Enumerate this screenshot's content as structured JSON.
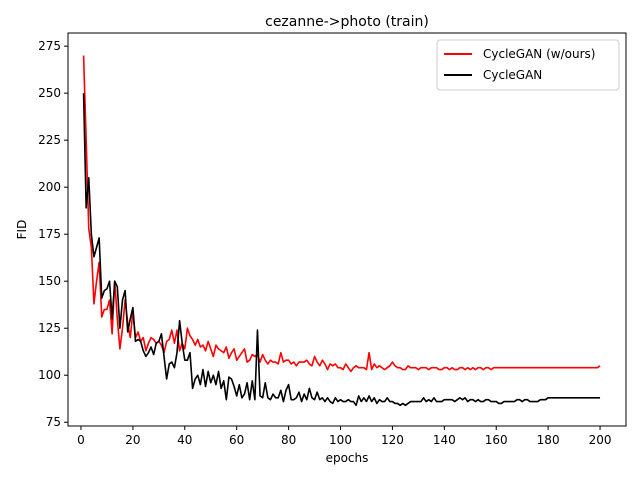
{
  "chart_data": {
    "type": "line",
    "title": "cezanne->photo (train)",
    "xlabel": "epochs",
    "ylabel": "FID",
    "xlim": [
      -5,
      210
    ],
    "ylim": [
      73,
      282
    ],
    "xticks": [
      0,
      20,
      40,
      60,
      80,
      100,
      120,
      140,
      160,
      180,
      200
    ],
    "yticks": [
      75,
      100,
      125,
      150,
      175,
      200,
      225,
      250,
      275
    ],
    "grid": false,
    "legend_position": "upper right",
    "x": [
      1,
      2,
      3,
      4,
      5,
      6,
      7,
      8,
      9,
      10,
      11,
      12,
      13,
      14,
      15,
      16,
      17,
      18,
      19,
      20,
      21,
      22,
      23,
      24,
      25,
      26,
      27,
      28,
      29,
      30,
      31,
      32,
      33,
      34,
      35,
      36,
      37,
      38,
      39,
      40,
      41,
      42,
      43,
      44,
      45,
      46,
      47,
      48,
      49,
      50,
      51,
      52,
      53,
      54,
      55,
      56,
      57,
      58,
      59,
      60,
      61,
      62,
      63,
      64,
      65,
      66,
      67,
      68,
      69,
      70,
      71,
      72,
      73,
      74,
      75,
      76,
      77,
      78,
      79,
      80,
      81,
      82,
      83,
      84,
      85,
      86,
      87,
      88,
      89,
      90,
      91,
      92,
      93,
      94,
      95,
      96,
      97,
      98,
      99,
      100,
      101,
      102,
      103,
      104,
      105,
      106,
      107,
      108,
      109,
      110,
      111,
      112,
      113,
      114,
      115,
      116,
      117,
      118,
      119,
      120,
      121,
      122,
      123,
      124,
      125,
      126,
      127,
      128,
      129,
      130,
      131,
      132,
      133,
      134,
      135,
      136,
      137,
      138,
      139,
      140,
      141,
      142,
      143,
      144,
      145,
      146,
      147,
      148,
      149,
      150,
      151,
      152,
      153,
      154,
      155,
      156,
      157,
      158,
      159,
      160,
      161,
      162,
      163,
      164,
      165,
      166,
      167,
      168,
      169,
      170,
      171,
      172,
      173,
      174,
      175,
      176,
      177,
      178,
      179,
      180,
      181,
      182,
      183,
      184,
      185,
      186,
      187,
      188,
      189,
      190,
      191,
      192,
      193,
      194,
      195,
      196,
      197,
      198,
      199,
      200
    ],
    "series": [
      {
        "name": "CycleGAN (w/ours)",
        "color": "#ff0000",
        "values": [
          270,
          225,
          178,
          168,
          138,
          150,
          160,
          131,
          135,
          135,
          140,
          122,
          150,
          130,
          114,
          125,
          140,
          128,
          120,
          134,
          120,
          123,
          118,
          120,
          113,
          117,
          120,
          119,
          117,
          118,
          116,
          112,
          118,
          119,
          124,
          117,
          124,
          113,
          117,
          114,
          125,
          121,
          119,
          116,
          119,
          115,
          116,
          113,
          118,
          114,
          110,
          116,
          114,
          113,
          112,
          115,
          109,
          112,
          114,
          108,
          110,
          112,
          114,
          107,
          108,
          111,
          110,
          111,
          107,
          111,
          108,
          106,
          108,
          107,
          107,
          106,
          112,
          107,
          108,
          108,
          106,
          107,
          105,
          107,
          107,
          107,
          108,
          106,
          105,
          110,
          107,
          105,
          108,
          106,
          103,
          106,
          105,
          106,
          104,
          104,
          103,
          106,
          104,
          102,
          104,
          105,
          104,
          104,
          104,
          103,
          112,
          103,
          106,
          104,
          105,
          104,
          103,
          104,
          105,
          107,
          105,
          104,
          104,
          103,
          103,
          105,
          104,
          104,
          104,
          103,
          104,
          104,
          104,
          103,
          104,
          104,
          104,
          103,
          103,
          104,
          104,
          103,
          104,
          103,
          103,
          104,
          104,
          103,
          104,
          103,
          104,
          103,
          104,
          104,
          103,
          104,
          104,
          103,
          104,
          104,
          104,
          104,
          104,
          104,
          104,
          104,
          104,
          104,
          104,
          104,
          104,
          104,
          104,
          104,
          104,
          104,
          104,
          104,
          104,
          104,
          104,
          104,
          104,
          104,
          104,
          104,
          104,
          104,
          104,
          104,
          104,
          104,
          104,
          104,
          104,
          104,
          104,
          104,
          104,
          105
        ]
      },
      {
        "name": "CycleGAN",
        "color": "#000000",
        "values": [
          250,
          189,
          205,
          175,
          163,
          168,
          173,
          141,
          145,
          146,
          150,
          130,
          150,
          147,
          125,
          140,
          145,
          123,
          130,
          136,
          118,
          119,
          118,
          113,
          110,
          112,
          115,
          111,
          117,
          118,
          122,
          110,
          98,
          106,
          107,
          104,
          112,
          129,
          117,
          108,
          108,
          112,
          93,
          98,
          100,
          95,
          103,
          94,
          102,
          96,
          100,
          95,
          102,
          93,
          97,
          87,
          99,
          98,
          94,
          89,
          95,
          88,
          90,
          96,
          87,
          97,
          87,
          124,
          89,
          88,
          96,
          88,
          87,
          90,
          88,
          88,
          92,
          86,
          92,
          95,
          87,
          87,
          88,
          91,
          86,
          90,
          87,
          93,
          88,
          87,
          91,
          87,
          88,
          86,
          88,
          86,
          85,
          88,
          86,
          87,
          86,
          86,
          87,
          86,
          86,
          84,
          89,
          86,
          88,
          86,
          89,
          86,
          88,
          85,
          87,
          86,
          86,
          88,
          86,
          86,
          85,
          85,
          84,
          85,
          84,
          85,
          86,
          86,
          86,
          86,
          86,
          88,
          86,
          87,
          86,
          88,
          86,
          86,
          86,
          87,
          87,
          87,
          87,
          86,
          87,
          88,
          87,
          88,
          86,
          87,
          87,
          86,
          87,
          86,
          86,
          87,
          87,
          86,
          86,
          86,
          85,
          85,
          86,
          86,
          86,
          86,
          86,
          87,
          87,
          86,
          87,
          87,
          86,
          86,
          86,
          86,
          87,
          87,
          87,
          88,
          88,
          88,
          88,
          88,
          88,
          88,
          88,
          88,
          88,
          88,
          88,
          88,
          88,
          88,
          88,
          88,
          88,
          88,
          88,
          88
        ]
      }
    ]
  }
}
